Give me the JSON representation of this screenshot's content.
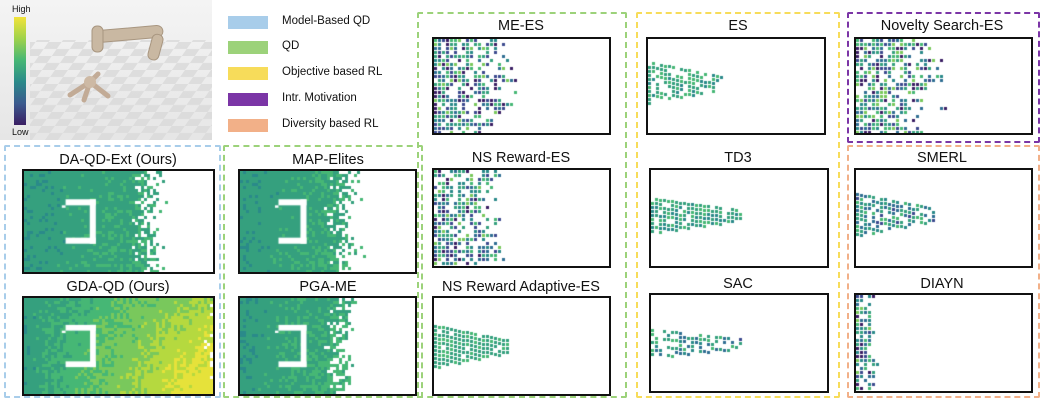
{
  "colorbar": {
    "high": "High",
    "low": "Low"
  },
  "legend": [
    {
      "label": "Model-Based QD",
      "color": "#a8cdea"
    },
    {
      "label": "QD",
      "color": "#9cd27a"
    },
    {
      "label": "Objective based RL",
      "color": "#f7dc5a"
    },
    {
      "label": "Intr. Motivation",
      "color": "#7b35a6"
    },
    {
      "label": "Diversity based RL",
      "color": "#f2b088"
    }
  ],
  "panels": {
    "da_qd_ext": "DA-QD-Ext (Ours)",
    "gda_qd": "GDA-QD (Ours)",
    "map_elites": "MAP-Elites",
    "pga_me": "PGA-ME",
    "me_es": "ME-ES",
    "ns_reward_es": "NS Reward-ES",
    "ns_reward_adaptive_es": "NS Reward Adaptive-ES",
    "es": "ES",
    "td3": "TD3",
    "sac": "SAC",
    "novelty_search_es": "Novelty Search-ES",
    "smerl": "SMERL",
    "diayn": "DIAYN"
  }
}
